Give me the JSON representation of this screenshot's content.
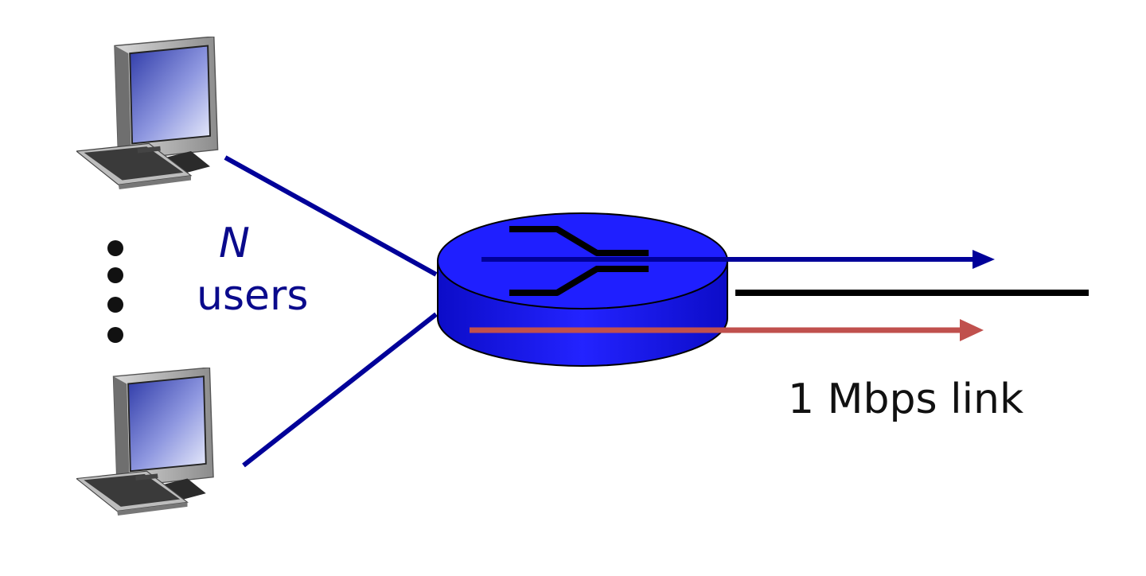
{
  "labels": {
    "n": "N",
    "users": "users",
    "link": "1 Mbps link"
  },
  "colors": {
    "user_link": "#000099",
    "output_link": "#000000",
    "flow_blue": "#000099",
    "flow_red": "#c0504d",
    "router_fill": "#1a1aff",
    "label_text": "#0a0a8c"
  },
  "icons": {
    "host": "desktop-computer-icon",
    "router": "router-icon",
    "ellipsis": "vertical-dots-icon"
  }
}
